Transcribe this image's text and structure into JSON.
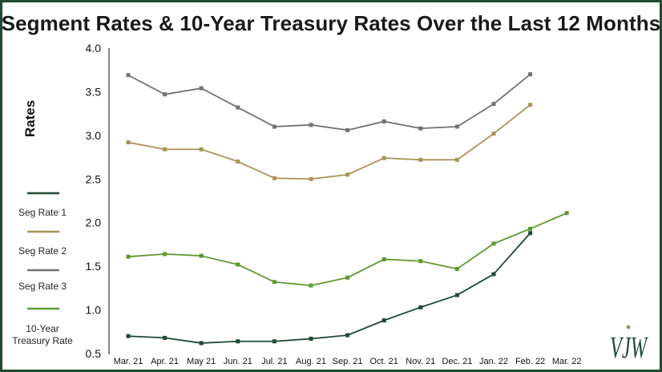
{
  "chart_data": {
    "type": "line",
    "title": "Segment Rates & 10-Year Treasury Rates Over the Last 12 Months",
    "ylabel": "Rates",
    "xlabel": "",
    "ylim": [
      0.5,
      4.0
    ],
    "yticks": [
      "4.0",
      "3.5",
      "3.0",
      "2.5",
      "2.0",
      "1.5",
      "1.0",
      "0.5"
    ],
    "categories": [
      "Mar. 21",
      "Apr. 21",
      "May 21",
      "Jun. 21",
      "Jul. 21",
      "Aug. 21",
      "Sep. 21",
      "Oct. 21",
      "Nov. 21",
      "Dec. 21",
      "Jan. 22",
      "Feb. 22",
      "Mar. 22"
    ],
    "grid": false,
    "legend_position": "left",
    "series": [
      {
        "name": "Seg Rate 1",
        "color": "#1f4a34",
        "values": [
          0.7,
          0.68,
          0.62,
          0.64,
          0.64,
          0.67,
          0.71,
          0.88,
          1.03,
          1.17,
          1.41,
          1.88,
          null
        ]
      },
      {
        "name": "Seg Rate 2",
        "color": "#a89357",
        "values": [
          2.92,
          2.84,
          2.84,
          2.7,
          2.51,
          2.5,
          2.55,
          2.74,
          2.72,
          2.72,
          3.02,
          3.35,
          null
        ]
      },
      {
        "name": "Seg Rate 3",
        "color": "#727272",
        "values": [
          3.69,
          3.47,
          3.54,
          3.32,
          3.1,
          3.12,
          3.06,
          3.16,
          3.08,
          3.1,
          3.36,
          3.7,
          null
        ]
      },
      {
        "name": "10-Year Treasury Rate",
        "label_lines": [
          "10-Year",
          "Treasury Rate"
        ],
        "color": "#5d9a2f",
        "values": [
          1.61,
          1.64,
          1.62,
          1.52,
          1.32,
          1.28,
          1.37,
          1.58,
          1.56,
          1.47,
          1.76,
          1.93,
          2.11
        ]
      }
    ]
  },
  "logo": {
    "text": "VJW"
  }
}
